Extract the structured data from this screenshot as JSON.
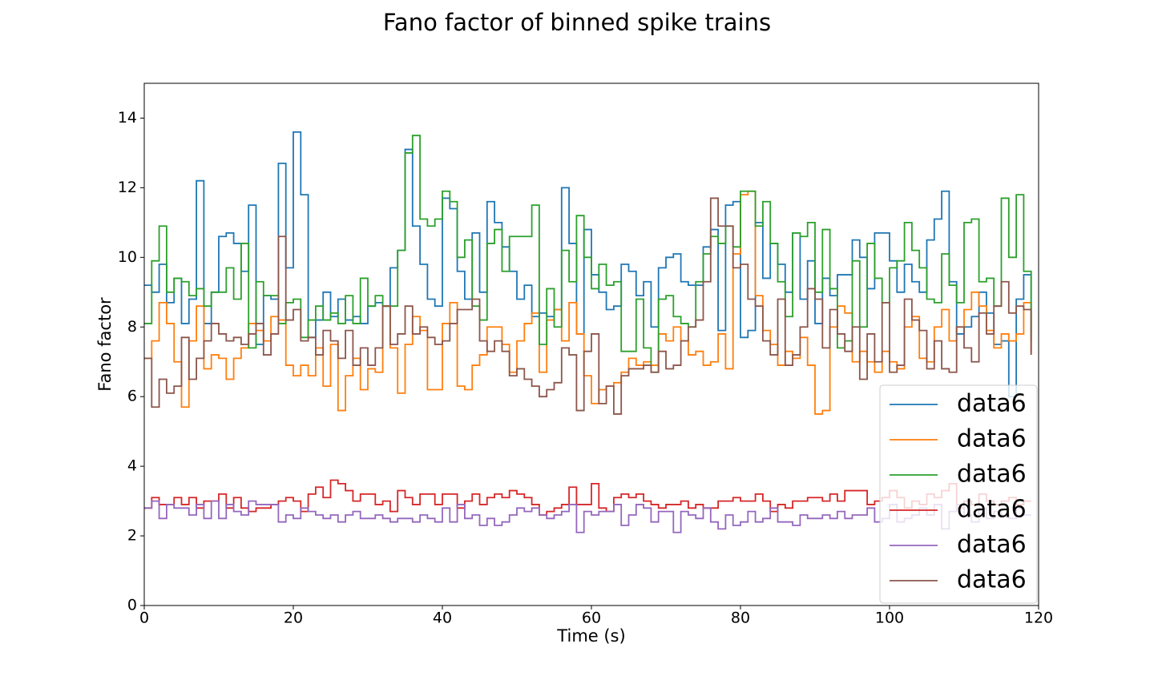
{
  "chart_data": {
    "type": "step",
    "title": "Fano factor of binned spike trains",
    "xlabel": "Time (s)",
    "ylabel": "Fano factor",
    "xlim": [
      0,
      120
    ],
    "ylim": [
      0,
      15
    ],
    "xticks": [
      0,
      20,
      40,
      60,
      80,
      100,
      120
    ],
    "yticks": [
      0,
      2,
      4,
      6,
      8,
      10,
      12,
      14
    ],
    "legend": "lower right",
    "x": [
      0,
      1,
      2,
      3,
      4,
      5,
      6,
      7,
      8,
      9,
      10,
      11,
      12,
      13,
      14,
      15,
      16,
      17,
      18,
      19,
      20,
      21,
      22,
      23,
      24,
      25,
      26,
      27,
      28,
      29,
      30,
      31,
      32,
      33,
      34,
      35,
      36,
      37,
      38,
      39,
      40,
      41,
      42,
      43,
      44,
      45,
      46,
      47,
      48,
      49,
      50,
      51,
      52,
      53,
      54,
      55,
      56,
      57,
      58,
      59,
      60,
      61,
      62,
      63,
      64,
      65,
      66,
      67,
      68,
      69,
      70,
      71,
      72,
      73,
      74,
      75,
      76,
      77,
      78,
      79,
      80,
      81,
      82,
      83,
      84,
      85,
      86,
      87,
      88,
      89,
      90,
      91,
      92,
      93,
      94,
      95,
      96,
      97,
      98,
      99,
      100,
      101,
      102,
      103,
      104,
      105,
      106,
      107,
      108,
      109,
      110,
      111,
      112,
      113,
      114,
      115,
      116,
      117,
      118,
      119
    ],
    "series": [
      {
        "name": "data6",
        "color": "#1f77b4",
        "values": [
          9.2,
          9.0,
          9.8,
          8.7,
          9.4,
          8.1,
          8.8,
          12.2,
          8.1,
          9.0,
          10.6,
          10.7,
          10.4,
          9.6,
          11.5,
          7.5,
          8.9,
          8.8,
          12.7,
          9.7,
          13.6,
          11.8,
          7.7,
          8.2,
          9.0,
          8.3,
          8.8,
          8.2,
          8.3,
          8.1,
          8.6,
          8.7,
          8.6,
          9.7,
          10.2,
          13.1,
          10.9,
          9.8,
          8.8,
          8.6,
          11.7,
          11.4,
          9.6,
          8.8,
          10.7,
          9.0,
          11.6,
          11.0,
          10.3,
          9.6,
          8.8,
          9.2,
          8.3,
          8.4,
          8.3,
          8.5,
          12.0,
          10.4,
          7.8,
          10.8,
          9.5,
          9.0,
          8.5,
          8.6,
          9.8,
          9.6,
          8.9,
          9.3,
          8.0,
          9.7,
          10.0,
          10.1,
          9.3,
          9.2,
          9.2,
          10.3,
          10.8,
          7.9,
          11.5,
          11.6,
          7.7,
          7.9,
          11.0,
          9.4,
          10.4,
          9.8,
          9.0,
          10.7,
          8.8,
          9.9,
          8.1,
          9.4,
          8.9,
          9.5,
          9.5,
          10.5,
          10.0,
          9.1,
          10.7,
          10.7,
          9.9,
          9.0,
          9.8,
          9.3,
          9.0,
          10.5,
          11.1,
          11.9,
          9.3,
          7.8,
          8.0,
          8.3,
          9.0,
          8.4,
          7.5,
          7.6,
          6.0,
          8.8,
          9.5,
          7.3
        ]
      },
      {
        "name": "data6",
        "color": "#ff7f0e",
        "values": [
          7.1,
          7.6,
          8.7,
          8.1,
          7.0,
          5.7,
          7.6,
          8.6,
          6.8,
          7.2,
          7.1,
          6.5,
          7.1,
          7.4,
          8.1,
          7.9,
          7.6,
          8.3,
          8.2,
          6.9,
          6.6,
          6.9,
          6.6,
          7.4,
          6.3,
          7.5,
          5.6,
          6.6,
          7.1,
          6.2,
          6.8,
          6.7,
          8.6,
          7.4,
          6.1,
          7.5,
          8.3,
          7.9,
          6.2,
          6.2,
          8.1,
          8.7,
          6.3,
          6.2,
          6.9,
          7.2,
          8.0,
          8.0,
          7.5,
          6.7,
          7.6,
          8.1,
          8.4,
          6.7,
          8.2,
          8.5,
          7.6,
          8.7,
          7.8,
          6.6,
          5.8,
          6.2,
          6.3,
          6.4,
          6.7,
          7.1,
          6.9,
          7.0,
          6.9,
          7.8,
          7.6,
          8.0,
          7.6,
          7.2,
          7.3,
          6.9,
          7.0,
          7.8,
          6.8,
          10.1,
          11.8,
          11.9,
          8.9,
          7.9,
          7.5,
          6.9,
          7.3,
          7.1,
          7.7,
          6.9,
          5.5,
          5.6,
          8.0,
          8.6,
          8.4,
          7.0,
          7.3,
          7.0,
          6.7,
          7.3,
          7.0,
          6.8,
          8.0,
          8.3,
          7.1,
          7.0,
          8.0,
          8.5,
          7.6,
          8.0,
          8.5,
          9.0,
          8.6,
          7.9,
          7.4,
          7.8,
          7.6,
          7.8,
          8.7,
          7.2
        ]
      },
      {
        "name": "data6",
        "color": "#2ca02c",
        "values": [
          8.1,
          9.9,
          10.9,
          9.0,
          9.4,
          9.3,
          8.9,
          9.1,
          8.6,
          9.0,
          9.0,
          9.7,
          8.8,
          10.4,
          7.4,
          9.3,
          8.9,
          8.9,
          8.1,
          8.7,
          8.8,
          7.7,
          8.2,
          8.6,
          8.2,
          8.4,
          8.1,
          8.9,
          8.1,
          9.4,
          8.6,
          8.9,
          8.6,
          8.6,
          10.2,
          13.0,
          13.5,
          11.1,
          10.9,
          11.1,
          11.9,
          11.6,
          10.0,
          10.5,
          8.6,
          8.2,
          10.4,
          10.8,
          9.6,
          10.6,
          10.6,
          10.6,
          11.5,
          7.5,
          9.1,
          8.0,
          10.2,
          9.3,
          11.2,
          10.0,
          9.1,
          9.8,
          9.2,
          9.3,
          7.3,
          7.3,
          8.8,
          7.4,
          6.7,
          8.8,
          8.9,
          8.3,
          8.1,
          8.0,
          9.3,
          10.1,
          10.6,
          10.4,
          10.9,
          10.3,
          11.9,
          11.9,
          10.9,
          11.6,
          10.4,
          9.3,
          8.3,
          10.7,
          10.6,
          11.0,
          9.0,
          10.8,
          9.1,
          7.4,
          7.6,
          9.9,
          8.0,
          10.4,
          9.4,
          8.7,
          9.7,
          9.9,
          11.0,
          10.2,
          9.7,
          8.8,
          8.7,
          10.1,
          9.2,
          8.7,
          11.0,
          11.1,
          9.3,
          9.4,
          8.6,
          11.7,
          10.0,
          11.8,
          9.6,
          7.6
        ]
      },
      {
        "name": "data6",
        "color": "#d62728",
        "values": [
          2.8,
          3.1,
          2.9,
          2.9,
          3.1,
          2.9,
          3.1,
          2.8,
          3.0,
          3.0,
          3.2,
          2.8,
          3.1,
          2.8,
          2.7,
          2.8,
          2.8,
          2.9,
          3.0,
          3.1,
          3.0,
          2.7,
          3.2,
          3.4,
          3.1,
          3.6,
          3.5,
          3.3,
          3.0,
          3.2,
          3.2,
          2.9,
          3.0,
          2.7,
          3.3,
          3.1,
          2.9,
          3.2,
          3.2,
          2.9,
          3.2,
          3.2,
          2.8,
          3.0,
          3.2,
          2.9,
          3.1,
          3.2,
          3.1,
          3.3,
          3.2,
          3.1,
          2.9,
          2.6,
          2.7,
          2.8,
          2.9,
          3.4,
          2.9,
          2.9,
          3.5,
          2.8,
          2.7,
          3.1,
          3.2,
          3.1,
          3.2,
          3.0,
          2.9,
          2.8,
          2.9,
          2.9,
          3.0,
          2.8,
          2.9,
          2.8,
          2.8,
          3.0,
          3.0,
          3.1,
          3.0,
          3.0,
          3.2,
          3.0,
          2.7,
          2.9,
          2.8,
          3.0,
          3.0,
          3.1,
          3.1,
          3.0,
          3.2,
          3.0,
          3.3,
          3.3,
          3.3,
          2.9,
          3.0,
          3.1,
          3.3,
          3.1,
          2.8,
          3.0,
          2.9,
          3.2,
          3.1,
          3.3,
          3.5,
          2.8,
          3.0,
          2.9,
          3.2,
          3.0,
          2.9,
          3.0,
          3.1,
          2.9,
          3.0,
          3.0
        ]
      },
      {
        "name": "data6",
        "color": "#9467bd",
        "values": [
          2.8,
          3.0,
          2.5,
          2.9,
          2.8,
          2.8,
          2.6,
          2.9,
          2.5,
          3.0,
          2.5,
          2.9,
          2.7,
          2.6,
          3.0,
          2.9,
          2.9,
          2.9,
          2.4,
          2.6,
          2.5,
          2.8,
          2.7,
          2.6,
          2.5,
          2.6,
          2.4,
          2.6,
          2.7,
          2.5,
          2.5,
          2.6,
          2.5,
          2.4,
          2.5,
          2.5,
          2.4,
          2.6,
          2.5,
          2.4,
          2.8,
          2.4,
          2.9,
          2.5,
          2.6,
          2.3,
          2.5,
          2.3,
          2.4,
          2.6,
          2.8,
          2.7,
          2.8,
          2.6,
          2.5,
          2.6,
          2.7,
          2.9,
          2.1,
          2.7,
          2.6,
          2.7,
          2.7,
          2.9,
          2.3,
          2.6,
          2.9,
          2.8,
          2.4,
          2.7,
          2.7,
          2.1,
          2.7,
          2.6,
          2.5,
          2.8,
          2.4,
          2.2,
          2.6,
          2.3,
          2.4,
          2.7,
          2.4,
          2.5,
          2.8,
          2.4,
          2.4,
          2.3,
          2.6,
          2.5,
          2.5,
          2.6,
          2.5,
          2.7,
          2.5,
          2.6,
          2.6,
          2.8,
          2.4,
          2.5,
          2.9,
          2.4,
          2.5,
          2.6,
          2.8,
          2.6,
          2.9,
          2.2,
          2.7,
          2.9,
          2.6,
          2.4,
          2.8,
          2.5,
          2.7,
          2.6,
          2.5,
          2.8,
          2.6,
          2.6
        ]
      },
      {
        "name": "data6",
        "color": "#8c564b",
        "values": [
          7.1,
          5.7,
          6.5,
          6.1,
          6.3,
          7.7,
          6.5,
          7.1,
          7.6,
          8.1,
          7.8,
          7.6,
          7.7,
          7.5,
          7.8,
          8.1,
          7.2,
          7.8,
          10.6,
          8.2,
          8.5,
          7.6,
          7.7,
          7.2,
          7.9,
          7.6,
          7.1,
          7.9,
          6.9,
          7.4,
          6.9,
          7.4,
          8.6,
          7.5,
          7.8,
          8.6,
          7.8,
          8.0,
          7.7,
          7.5,
          7.6,
          8.1,
          8.5,
          8.5,
          8.8,
          7.6,
          7.3,
          7.6,
          7.3,
          6.6,
          6.8,
          6.5,
          6.3,
          6.0,
          6.2,
          6.4,
          7.4,
          7.2,
          5.6,
          7.3,
          7.8,
          5.8,
          6.3,
          5.5,
          6.6,
          6.8,
          6.8,
          6.9,
          6.7,
          7.3,
          6.8,
          6.9,
          7.6,
          8.0,
          8.2,
          9.3,
          11.7,
          10.9,
          10.9,
          9.7,
          9.8,
          8.8,
          8.6,
          7.6,
          7.2,
          8.8,
          6.9,
          7.2,
          8.0,
          9.1,
          8.8,
          7.4,
          8.5,
          7.8,
          7.3,
          8.0,
          6.5,
          7.8,
          7.0,
          8.7,
          6.7,
          6.9,
          8.8,
          8.2,
          7.9,
          6.8,
          7.6,
          6.8,
          6.7,
          8.0,
          7.4,
          7.0,
          8.4,
          7.8,
          8.6,
          9.3,
          8.4,
          8.6,
          8.5,
          7.2
        ]
      }
    ]
  }
}
